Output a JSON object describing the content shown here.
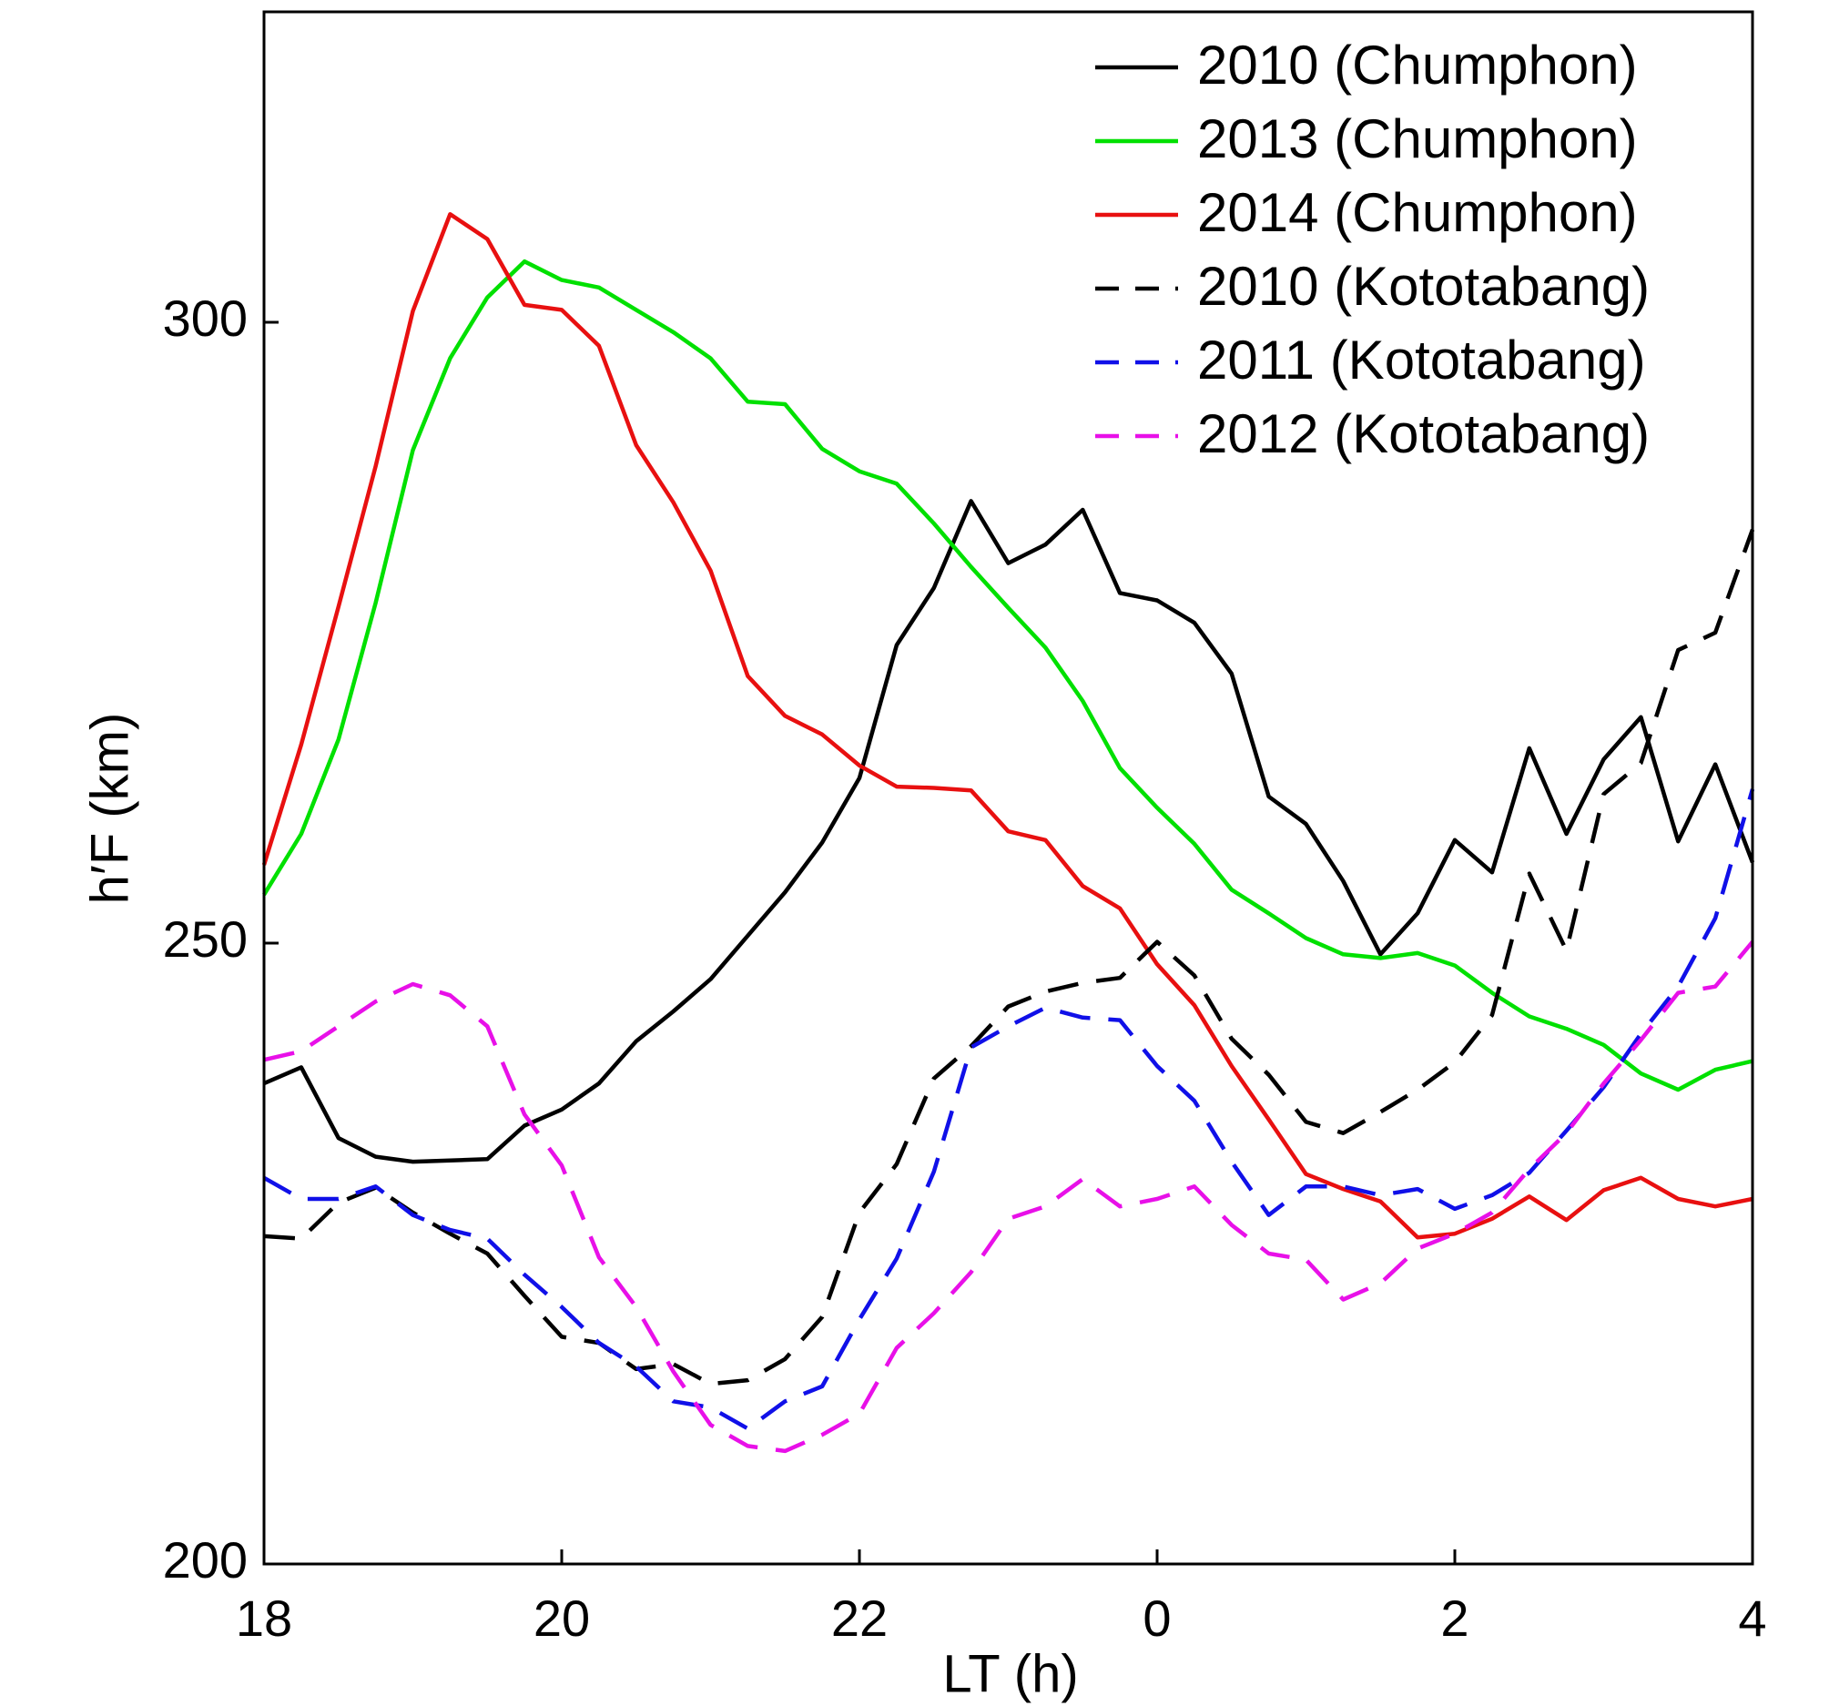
{
  "chart_data": {
    "type": "line",
    "x_label": "LT (h)",
    "y_label": "h′F (km)",
    "xlim": [
      18,
      28
    ],
    "ylim": [
      200,
      325
    ],
    "xticks": [
      18,
      20,
      22,
      {
        "value": 24,
        "label": "0"
      },
      {
        "value": 26,
        "label": "2"
      },
      {
        "value": 28,
        "label": "4"
      }
    ],
    "yticks": [
      200,
      250,
      300
    ],
    "legend": "upper right",
    "x": [
      18,
      18.25,
      18.5,
      18.75,
      19,
      19.25,
      19.5,
      19.75,
      20,
      20.25,
      20.5,
      20.75,
      21,
      21.25,
      21.5,
      21.75,
      22,
      22.25,
      22.5,
      22.75,
      23,
      23.25,
      23.5,
      23.75,
      24,
      24.25,
      24.5,
      24.75,
      25,
      25.25,
      25.5,
      25.75,
      26,
      26.25,
      26.5,
      26.75,
      27,
      27.25,
      27.5,
      27.75,
      28
    ],
    "series": [
      {
        "name": "2010 (Chumphon)",
        "color": "#000000",
        "dashed": false,
        "values": [
          238.7,
          240,
          234.3,
          232.8,
          232.4,
          232.5,
          232.6,
          235.3,
          236.6,
          238.7,
          242.1,
          244.5,
          247.1,
          250.6,
          254.1,
          258.1,
          263.3,
          274,
          278.6,
          285.6,
          280.6,
          282.1,
          284.9,
          278.2,
          277.6,
          275.8,
          271.7,
          261.8,
          259.6,
          255,
          249.1,
          252.4,
          258.3,
          255.7,
          265.7,
          258.8,
          264.8,
          268.2,
          258.2,
          264.4,
          256.5
        ]
      },
      {
        "name": "2013 (Chumphon)",
        "color": "#00e000",
        "dashed": false,
        "values": [
          253.9,
          258.8,
          266.4,
          277.4,
          289.7,
          297.1,
          302,
          304.9,
          303.4,
          302.8,
          301,
          299.2,
          297.1,
          293.6,
          293.4,
          289.8,
          288,
          287,
          283.8,
          280.3,
          277,
          273.8,
          269.5,
          264.1,
          260.9,
          258,
          254.3,
          252.4,
          250.4,
          249.1,
          248.8,
          249.2,
          248.2,
          246,
          244.1,
          243.1,
          241.8,
          239.5,
          238.2,
          239.8,
          240.5
        ]
      },
      {
        "name": "2014 (Chumphon)",
        "color": "#e81010",
        "dashed": false,
        "values": [
          256.3,
          266,
          277.1,
          288.4,
          300.9,
          308.7,
          306.7,
          301.4,
          301,
          298.1,
          290.1,
          285.5,
          280,
          271.5,
          268.3,
          266.8,
          264.3,
          262.6,
          262.5,
          262.3,
          259,
          258.3,
          254.6,
          252.8,
          248.3,
          245,
          240.1,
          235.8,
          231.4,
          230.2,
          229.2,
          226.3,
          226.6,
          227.8,
          229.6,
          227.7,
          230.1,
          231.1,
          229.4,
          228.8,
          229.4
        ]
      },
      {
        "name": "2010 (Kototabang)",
        "color": "#000000",
        "dashed": true,
        "values": [
          226.4,
          226.2,
          229.1,
          230.3,
          228.3,
          226.6,
          225,
          221.6,
          218.3,
          217.8,
          215.7,
          216.1,
          214.5,
          214.8,
          216.5,
          219.9,
          228.3,
          232.2,
          239.1,
          241.7,
          244.9,
          246.1,
          246.8,
          247.2,
          250.1,
          247.4,
          242.3,
          239.4,
          235.6,
          234.7,
          236.4,
          238.2,
          240.4,
          244.2,
          255.6,
          249.4,
          262,
          264.5,
          273.6,
          275,
          283.3
        ]
      },
      {
        "name": "2011 (Kototabang)",
        "color": "#1010e8",
        "dashed": true,
        "values": [
          231.1,
          229.4,
          229.4,
          230.4,
          228.1,
          226.9,
          226.2,
          223.3,
          220.7,
          217.8,
          215.9,
          213.1,
          212.6,
          210.9,
          213.1,
          214.3,
          219.7,
          224.6,
          231.6,
          241.6,
          243.3,
          244.8,
          244,
          243.8,
          240.1,
          237.3,
          232.4,
          228.1,
          230.4,
          230.4,
          229.7,
          230.2,
          228.6,
          229.7,
          231.5,
          234.9,
          238.4,
          242.7,
          246.5,
          252,
          262.4
        ]
      },
      {
        "name": "2012 (Kototabang)",
        "color": "#e810e8",
        "dashed": true,
        "values": [
          240.6,
          241.3,
          243.3,
          245.3,
          246.7,
          245.8,
          243.3,
          236.2,
          232.1,
          224.7,
          220.7,
          215.5,
          211.2,
          209.5,
          209.1,
          210.4,
          212.1,
          217.4,
          220.2,
          223.5,
          227.8,
          228.8,
          231,
          228.8,
          229.4,
          230.4,
          227.3,
          225,
          224.5,
          221.3,
          222.6,
          225.4,
          226.6,
          228.3,
          231.8,
          234.7,
          238.7,
          242.2,
          246,
          246.5,
          250.1
        ]
      }
    ]
  }
}
